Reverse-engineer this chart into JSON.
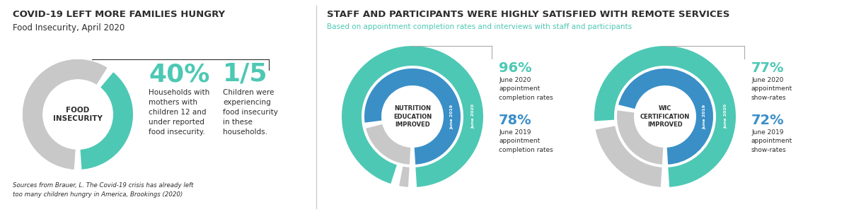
{
  "bg_color": "#ffffff",
  "teal": "#4dc8b4",
  "blue": "#3a8fc7",
  "gray_ring": "#c8c8c8",
  "dark_text": "#2d2d2d",
  "left_title": "COVID-19 LEFT MORE FAMILIES HUNGRY",
  "left_subtitle": "Food Insecurity, April 2020",
  "left_source": "Sources from Brauer, L. The Covid-19 crisis has already left\ntoo many children hungry in America, Brookings (2020)",
  "food_circle_pct": 0.4,
  "food_circle_label": "FOOD\nINSECURITY",
  "stat1_pct": "40%",
  "stat1_desc": "Households with\nmothers with\nchildren 12 and\nunder reported\nfood insecurity.",
  "stat2_pct": "1/5",
  "stat2_desc": "Children were\nexperiencing\nfood insecurity\nin these\nhouseholds.",
  "right_title": "STAFF AND PARTICIPANTS WERE HIGHLY SATISFIED WITH REMOTE SERVICES",
  "right_subtitle": "Based on appointment completion rates and interviews with staff and participants",
  "nutr_label": "NUTRITION\nEDUCATION\nIMPROVED",
  "nutr_2020_pct": 0.96,
  "nutr_2019_pct": 0.78,
  "nutr_2020_text": "96%",
  "nutr_2020_desc": "June 2020\nappointment\ncompletion rates",
  "nutr_2019_text": "78%",
  "nutr_2019_desc": "June 2019\nappointment\ncompletion rates",
  "wic_label": "WIC\nCERTIFICATION\nIMPROVED",
  "wic_2020_pct": 0.77,
  "wic_2019_pct": 0.72,
  "wic_2020_text": "77%",
  "wic_2020_desc": "June 2020\nappointment\nshow-rates",
  "wic_2019_text": "72%",
  "wic_2019_desc": "June 2019\nappointment\nshow-rates"
}
